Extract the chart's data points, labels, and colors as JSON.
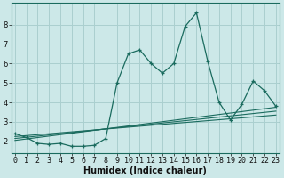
{
  "xlabel": "Humidex (Indice chaleur)",
  "background_color": "#cce8e8",
  "grid_color": "#aacfcf",
  "line_color": "#1a6b5e",
  "x_data": [
    0,
    1,
    2,
    3,
    4,
    5,
    6,
    7,
    8,
    9,
    10,
    11,
    12,
    13,
    14,
    15,
    16,
    17,
    18,
    19,
    20,
    21,
    22,
    23
  ],
  "main_y": [
    2.4,
    2.2,
    1.9,
    1.85,
    1.9,
    1.75,
    1.75,
    1.8,
    2.15,
    5.0,
    6.5,
    6.7,
    6.0,
    5.5,
    6.0,
    7.9,
    8.6,
    6.1,
    4.0,
    3.1,
    3.9,
    5.1,
    4.6,
    3.8
  ],
  "reg_lines": [
    {
      "start_x": 0,
      "start_y": 2.05,
      "end_x": 23,
      "end_y": 3.75
    },
    {
      "start_x": 0,
      "start_y": 2.15,
      "end_x": 23,
      "end_y": 3.55
    },
    {
      "start_x": 0,
      "start_y": 2.25,
      "end_x": 23,
      "end_y": 3.35
    }
  ],
  "ylim": [
    1.4,
    9.1
  ],
  "xlim": [
    -0.3,
    23.3
  ],
  "yticks": [
    2,
    3,
    4,
    5,
    6,
    7,
    8
  ],
  "xticks": [
    0,
    1,
    2,
    3,
    4,
    5,
    6,
    7,
    8,
    9,
    10,
    11,
    12,
    13,
    14,
    15,
    16,
    17,
    18,
    19,
    20,
    21,
    22,
    23
  ],
  "tick_fontsize": 6.0,
  "xlabel_fontsize": 7.0
}
